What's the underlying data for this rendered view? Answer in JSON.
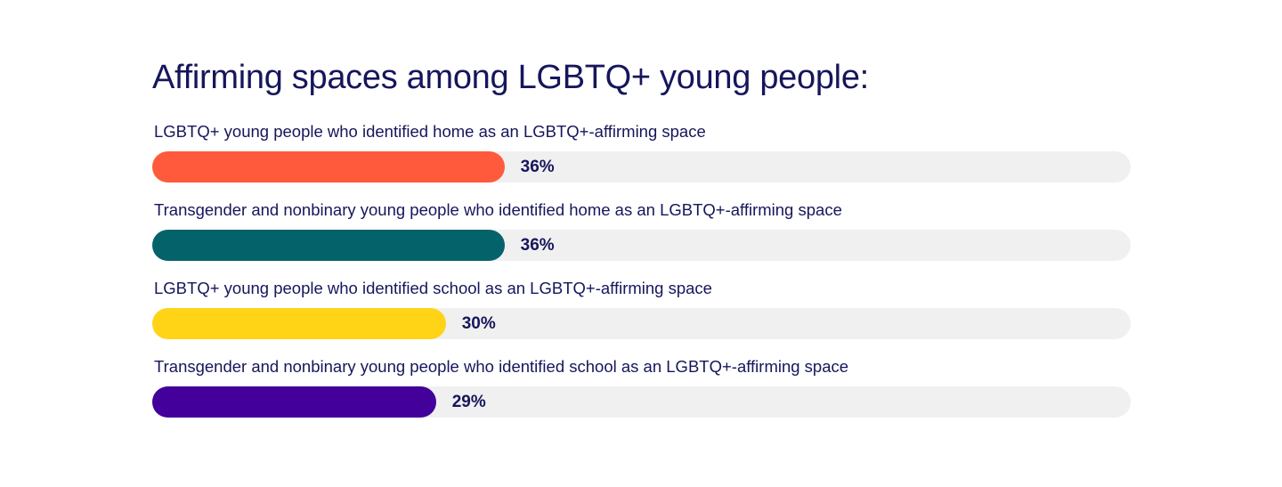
{
  "chart_data": {
    "type": "bar",
    "orientation": "horizontal",
    "title": "Affirming spaces among LGBTQ+ young people:",
    "xlim": [
      0,
      100
    ],
    "grid": false,
    "categories": [
      "LGBTQ+ young people who identified home as an LGBTQ+-affirming space",
      "Transgender and nonbinary young people who identified home as an LGBTQ+-affirming space",
      "LGBTQ+ young people who identified school as an LGBTQ+-affirming space",
      "Transgender and nonbinary young people who identified school as an LGBTQ+-affirming space"
    ],
    "values": [
      36,
      36,
      30,
      29
    ],
    "value_labels": [
      "36%",
      "36%",
      "30%",
      "29%"
    ],
    "colors": [
      "#ff5a3c",
      "#04636a",
      "#ffd417",
      "#43009b"
    ],
    "track_color": "#f0f0f0"
  }
}
